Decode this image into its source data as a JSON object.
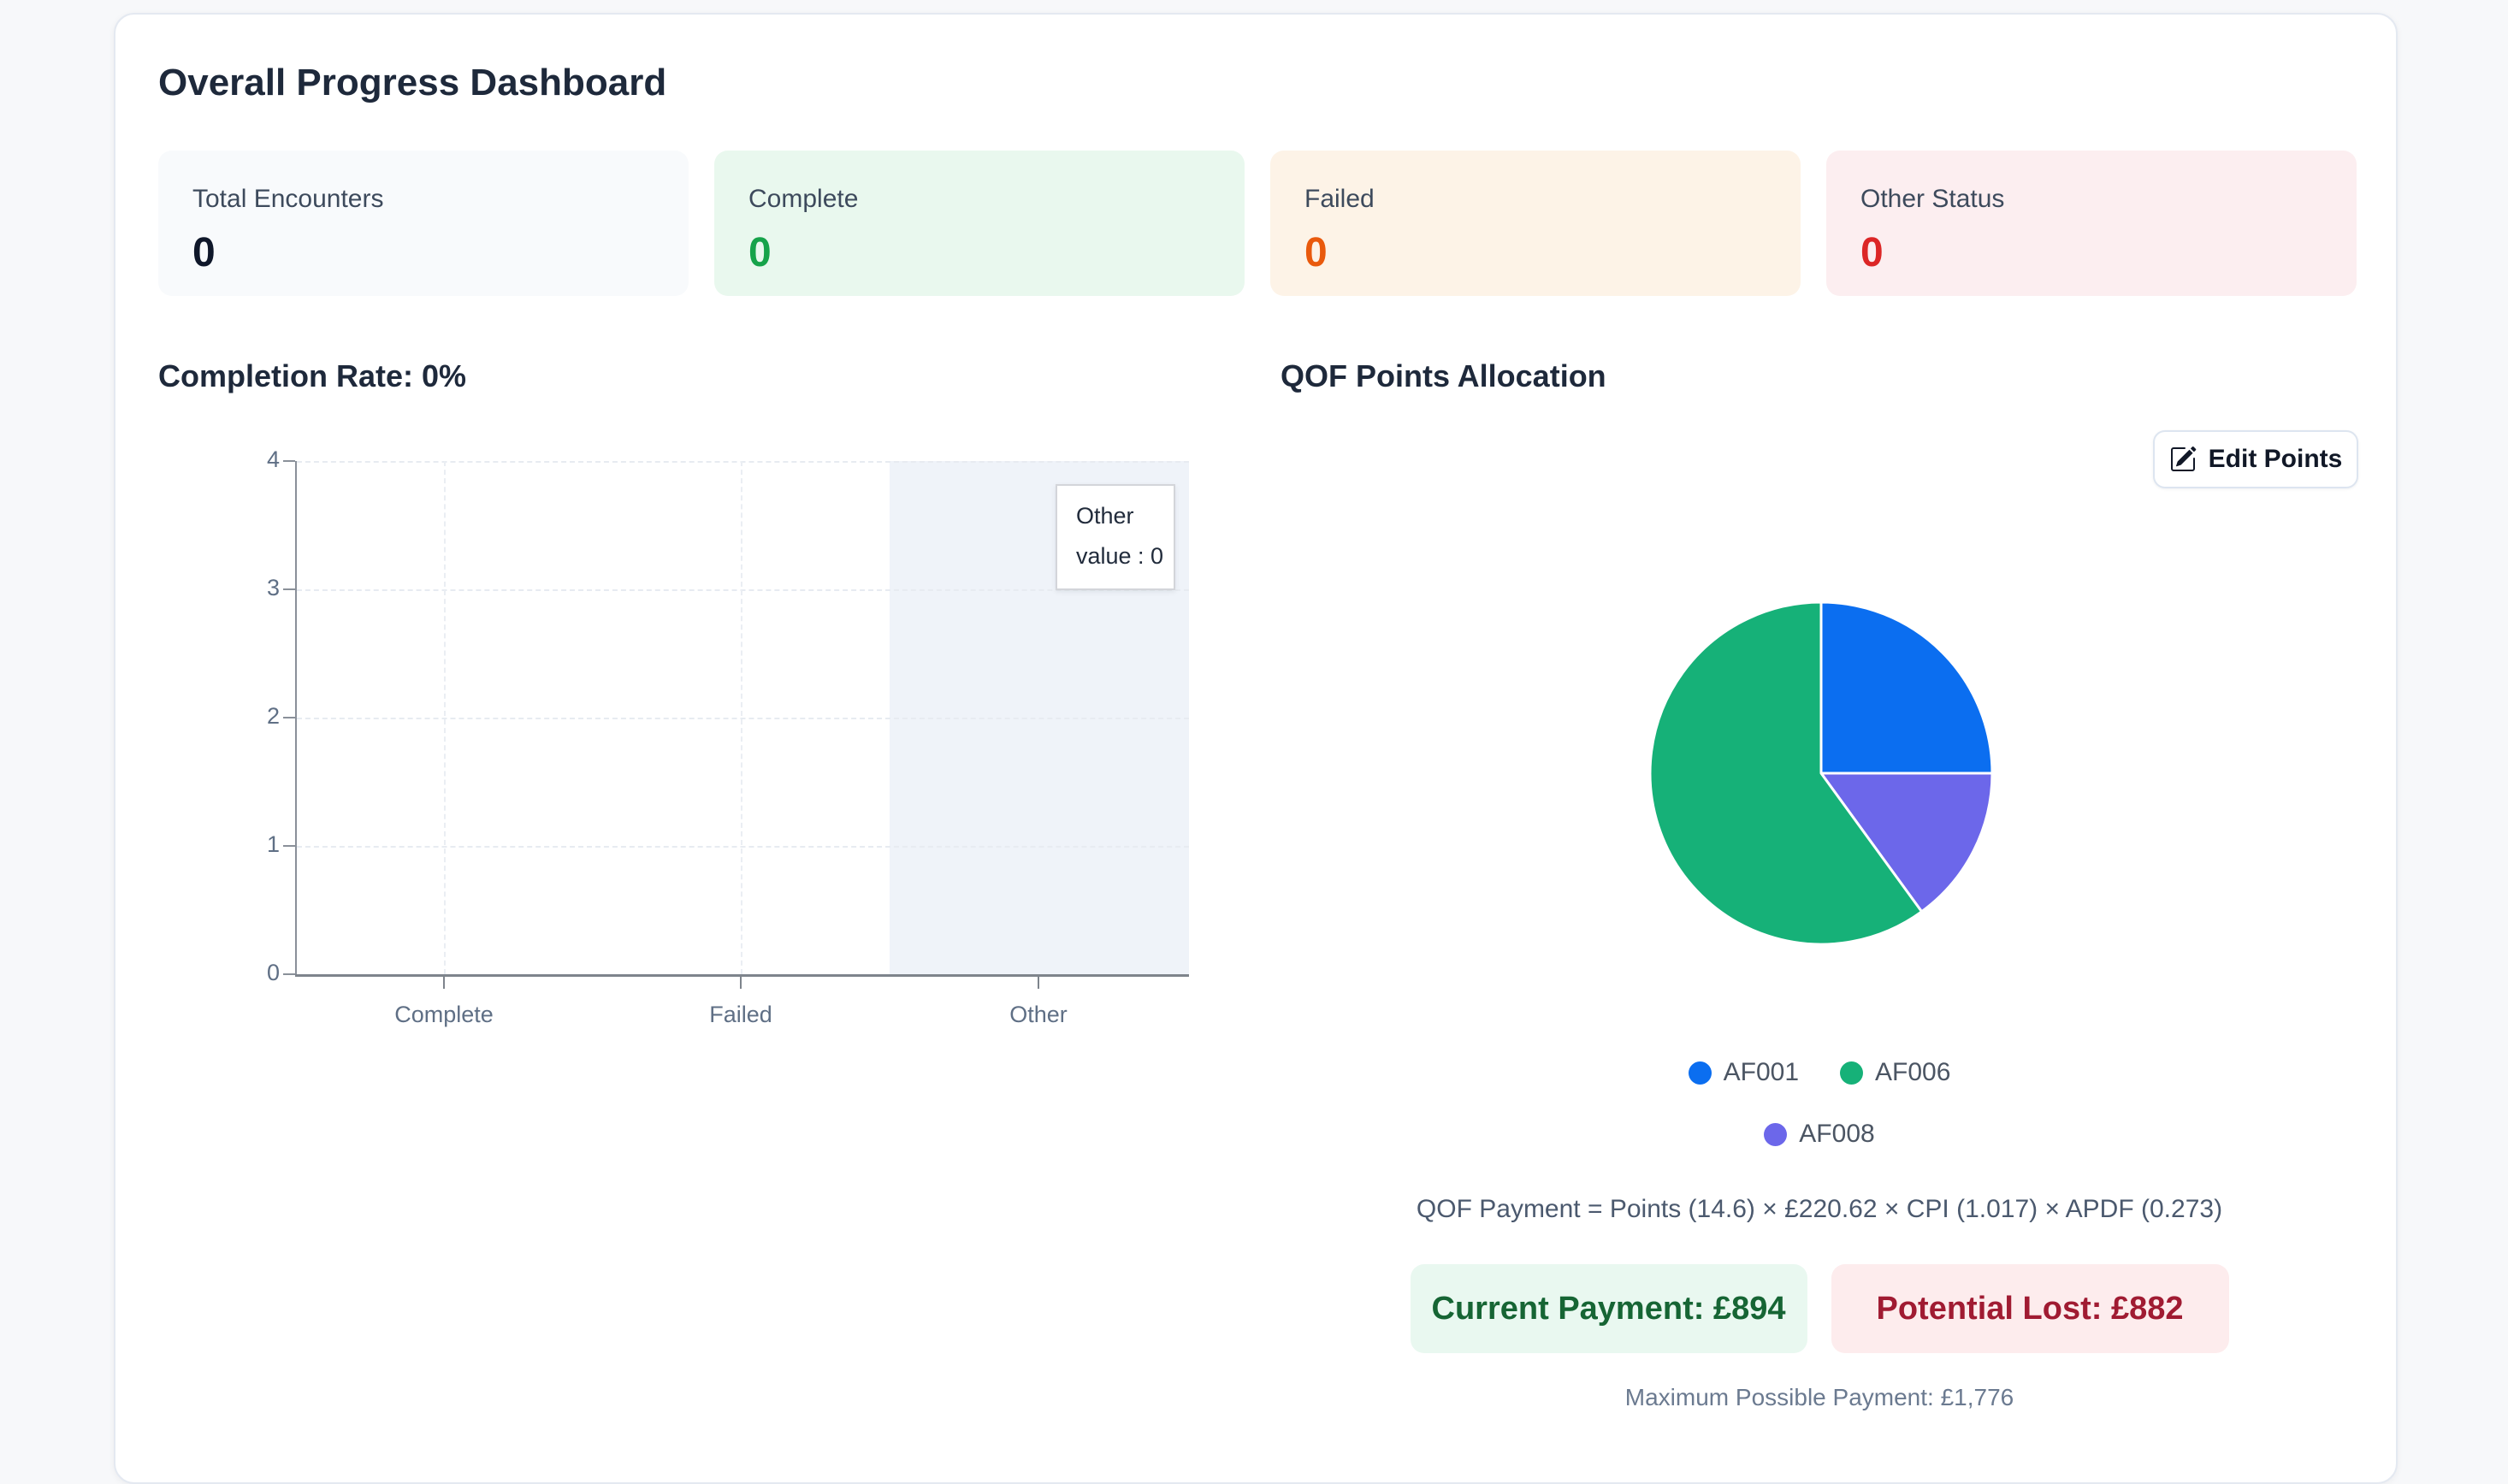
{
  "title": "Overall Progress Dashboard",
  "stats": [
    {
      "label": "Total Encounters",
      "value": "0",
      "bg": "#f8fafc",
      "value_color": "#0f172a"
    },
    {
      "label": "Complete",
      "value": "0",
      "bg": "#e9f8ee",
      "value_color": "#16a34a"
    },
    {
      "label": "Failed",
      "value": "0",
      "bg": "#fdf3e7",
      "value_color": "#e9590c"
    },
    {
      "label": "Other Status",
      "value": "0",
      "bg": "#fceef0",
      "value_color": "#dc2626"
    }
  ],
  "qof": {
    "edit_button_label": "Edit Points",
    "formula": "QOF Payment = Points (14.6) × £220.62 × CPI (1.017) × APDF (0.273)",
    "current_payment": "Current Payment: £894",
    "potential_lost": "Potential Lost: £882",
    "max_payment": "Maximum Possible Payment: £1,776"
  },
  "chart_data": [
    {
      "type": "bar",
      "title": "Completion Rate: 0%",
      "categories": [
        "Complete",
        "Failed",
        "Other"
      ],
      "values": [
        0,
        0,
        0
      ],
      "ylim": [
        0,
        4
      ],
      "yticks": [
        4,
        3,
        2,
        1,
        0
      ],
      "grid": true,
      "highlighted_category": "Other",
      "tooltip": {
        "label": "Other",
        "value_line": "value : 0"
      }
    },
    {
      "type": "pie",
      "title": "QOF Points Allocation",
      "legend": [
        "AF001",
        "AF006",
        "AF008"
      ],
      "legend_position": "bottom",
      "colors": {
        "AF001": "#0b6ef0",
        "AF006": "#16b178",
        "AF008": "#6c67ea"
      },
      "slices_clockwise_from_top": [
        {
          "label": "AF001",
          "pct": 25
        },
        {
          "label": "AF008",
          "pct": 15
        },
        {
          "label": "AF006",
          "pct": 60
        }
      ]
    }
  ]
}
